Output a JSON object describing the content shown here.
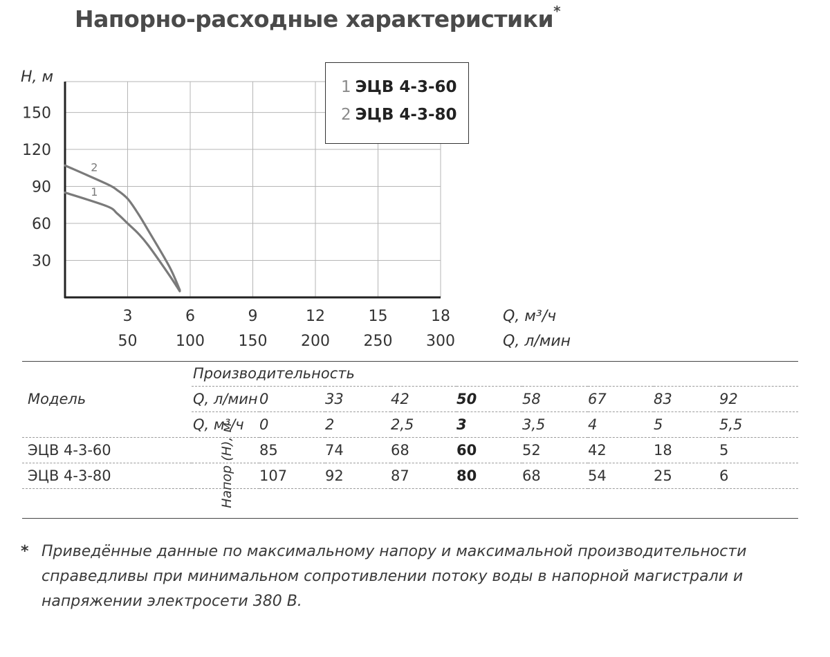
{
  "title": "Напорно-расходные характеристики",
  "title_mark": "*",
  "chart_data": {
    "type": "line",
    "title": "Напорно-расходные характеристики",
    "ylabel": "H, м",
    "xlabel": "Q, м³/ч",
    "xlabel_secondary": "Q, л/мин",
    "xlim": [
      0,
      18
    ],
    "ylim": [
      0,
      175
    ],
    "y_ticks": [
      30,
      60,
      90,
      120,
      150
    ],
    "x_ticks": [
      3,
      6,
      9,
      12,
      15,
      18
    ],
    "x_ticks_secondary": [
      "50",
      "100",
      "150",
      "200",
      "250",
      "300"
    ],
    "grid": true,
    "legend_position": "top-right",
    "series": [
      {
        "name": "ЭЦВ 4-3-60",
        "label": "1",
        "color": "#7a7a7a",
        "x": [
          0,
          2,
          2.5,
          3,
          3.5,
          4,
          5,
          5.5
        ],
        "y": [
          85,
          74,
          68,
          60,
          52,
          42,
          18,
          5
        ]
      },
      {
        "name": "ЭЦВ 4-3-80",
        "label": "2",
        "color": "#7a7a7a",
        "x": [
          0,
          2,
          2.5,
          3,
          3.5,
          4,
          5,
          5.5
        ],
        "y": [
          107,
          92,
          87,
          80,
          68,
          54,
          25,
          6
        ]
      }
    ]
  },
  "legend": [
    {
      "num": "1",
      "name": "ЭЦВ 4-3-60"
    },
    {
      "num": "2",
      "name": "ЭЦВ 4-3-80"
    }
  ],
  "table": {
    "header_productivity": "Производительность",
    "header_model": "Модель",
    "row_q_lmin_label": "Q, л/мин",
    "row_q_m3h_label": "Q, м³/ч",
    "head_label": "Напор (H), м",
    "q_lmin": [
      "0",
      "33",
      "42",
      "50",
      "58",
      "67",
      "83",
      "92"
    ],
    "q_m3h": [
      "0",
      "2",
      "2,5",
      "3",
      "3,5",
      "4",
      "5",
      "5,5"
    ],
    "highlight_index": 3,
    "models": [
      {
        "name": "ЭЦВ 4-3-60",
        "values": [
          "85",
          "74",
          "68",
          "60",
          "52",
          "42",
          "18",
          "5"
        ]
      },
      {
        "name": "ЭЦВ 4-3-80",
        "values": [
          "107",
          "92",
          "87",
          "80",
          "68",
          "54",
          "25",
          "6"
        ]
      }
    ]
  },
  "footnote": {
    "mark": "*",
    "text": "Приведённые данные по максимальному напору и максимальной производительности справедливы при минимальном сопротивлении потоку воды в напорной магистрали и напряжении электросети 380 В."
  }
}
